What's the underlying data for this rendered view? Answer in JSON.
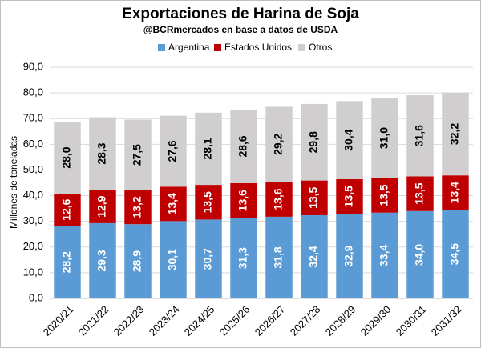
{
  "chart_data": {
    "type": "stacked-bar",
    "title": "Exportaciones de Harina de Soja",
    "subtitle": "@BCRmercados en base a datos de USDA",
    "y_label": "Millones de toneladas",
    "categories": [
      "2020/21",
      "2021/22",
      "2022/23",
      "2023/24",
      "2024/25",
      "2025/26",
      "2026/27",
      "2027/28",
      "2028/29",
      "2029/30",
      "2030/31",
      "2031/32"
    ],
    "series": [
      {
        "name": "Argentina",
        "color": "#5b9bd5",
        "values": [
          28.2,
          29.3,
          28.9,
          30.1,
          30.7,
          31.3,
          31.8,
          32.4,
          32.9,
          33.4,
          34.0,
          34.5
        ],
        "value_labels": [
          "28,2",
          "29,3",
          "28,9",
          "30,1",
          "30,7",
          "31,3",
          "31,8",
          "32,4",
          "32,9",
          "33,4",
          "34,0",
          "34,5"
        ]
      },
      {
        "name": "Estados Unidos",
        "color": "#c00000",
        "values": [
          12.6,
          12.9,
          13.2,
          13.4,
          13.5,
          13.6,
          13.6,
          13.5,
          13.5,
          13.5,
          13.5,
          13.4
        ],
        "value_labels": [
          "12,6",
          "12,9",
          "13,2",
          "13,4",
          "13,5",
          "13,6",
          "13,6",
          "13,5",
          "13,5",
          "13,5",
          "13,5",
          "13,4"
        ]
      },
      {
        "name": "Otros",
        "color": "#d0cece",
        "values": [
          28.0,
          28.3,
          27.5,
          27.6,
          28.1,
          28.6,
          29.2,
          29.8,
          30.4,
          31.0,
          31.6,
          32.2
        ],
        "value_labels": [
          "28,0",
          "28,3",
          "27,5",
          "27,6",
          "28,1",
          "28,6",
          "29,2",
          "29,8",
          "30,4",
          "31,0",
          "31,6",
          "32,2"
        ]
      }
    ],
    "ylim": [
      0,
      90
    ],
    "yticks": [
      {
        "value": 0,
        "label": "0,0"
      },
      {
        "value": 10,
        "label": "10,0"
      },
      {
        "value": 20,
        "label": "20,0"
      },
      {
        "value": 30,
        "label": "30,0"
      },
      {
        "value": 40,
        "label": "40,0"
      },
      {
        "value": 50,
        "label": "50,0"
      },
      {
        "value": 60,
        "label": "60,0"
      },
      {
        "value": 70,
        "label": "70,0"
      },
      {
        "value": 80,
        "label": "80,0"
      },
      {
        "value": 90,
        "label": "90,0"
      }
    ],
    "grid": true,
    "legend": "top"
  }
}
